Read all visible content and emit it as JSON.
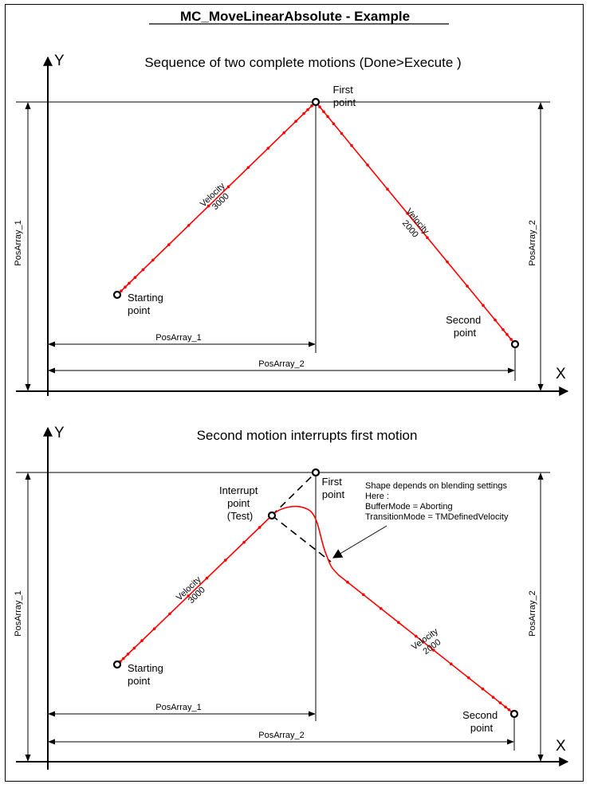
{
  "title": "MC_MoveLinearAbsolute - Example",
  "colors": {
    "path": "#ff0000",
    "line": "#000000"
  },
  "panel1": {
    "subtitle": "Sequence of two complete motions  (Done>Execute )",
    "axis_x": "X",
    "axis_y": "Y",
    "start_label": [
      "Starting",
      "point"
    ],
    "first_label": [
      "First",
      "point"
    ],
    "second_label": [
      "Second",
      "point"
    ],
    "velocity1": [
      "Velocity",
      "3000"
    ],
    "velocity2": [
      "Velocity",
      "2000"
    ],
    "dim_x1": "PosArray_1",
    "dim_x2": "PosArray_2",
    "dim_y1": "PosArray_1",
    "dim_y2": "PosArray_2"
  },
  "panel2": {
    "subtitle": "Second motion interrupts first motion",
    "axis_x": "X",
    "axis_y": "Y",
    "start_label": [
      "Starting",
      "point"
    ],
    "first_label": [
      "First",
      "point"
    ],
    "second_label": [
      "Second",
      "point"
    ],
    "interrupt_label": [
      "Interrupt",
      "point",
      "(Test)"
    ],
    "velocity1": [
      "Velocity",
      "3000"
    ],
    "velocity2": [
      "Velocity",
      "2000"
    ],
    "dim_x1": "PosArray_1",
    "dim_x2": "PosArray_2",
    "dim_y1": "PosArray_1",
    "dim_y2": "PosArray_2",
    "note": [
      "Shape depends on blending settings",
      "Here :",
      "BufferMode = Aborting",
      "TransitionMode = TMDefinedVelocity"
    ]
  }
}
